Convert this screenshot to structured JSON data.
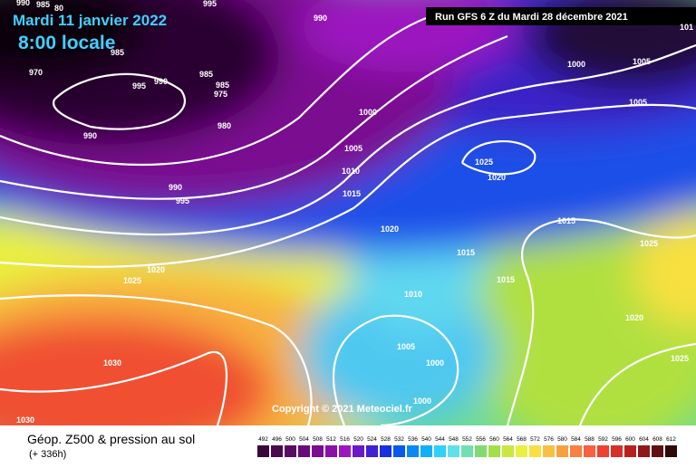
{
  "header": {
    "date": "Mardi 11 janvier 2022",
    "time": "8:00 locale",
    "run": "Run GFS 6 Z du Mardi 28 décembre 2021"
  },
  "isobar_labels": [
    990,
    985,
    80,
    995,
    990,
    985,
    970,
    995,
    990,
    985,
    985,
    975,
    980,
    990,
    1000,
    1005,
    1010,
    1015,
    990,
    995,
    1025,
    1020,
    1000,
    1005,
    1005,
    101,
    1015,
    1020,
    1025,
    1015,
    1015,
    1020,
    1025,
    1010,
    1020,
    1005,
    1000,
    1030,
    1025,
    1000,
    1030
  ],
  "copyright": "Copyright © 2021 Meteociel.fr",
  "legend": {
    "title": "Géop. Z500 & pression au sol",
    "subtitle": "(+ 336h)",
    "values": [
      492,
      496,
      500,
      504,
      508,
      512,
      516,
      520,
      524,
      528,
      532,
      536,
      540,
      544,
      548,
      552,
      556,
      560,
      564,
      568,
      572,
      576,
      580,
      584,
      588,
      592,
      596,
      600,
      604,
      608,
      612
    ],
    "colors": [
      "#3a0838",
      "#4a0a4c",
      "#5a0c64",
      "#6a0a7a",
      "#7a0c90",
      "#8a10a8",
      "#9c16c0",
      "#6a18c8",
      "#4020d0",
      "#1830e0",
      "#0a58ee",
      "#0a88f4",
      "#10b0f8",
      "#30d0f8",
      "#60e0e8",
      "#70e0b0",
      "#80dc70",
      "#a0e048",
      "#c8e840",
      "#e8f040",
      "#f8e040",
      "#f8c040",
      "#f8a040",
      "#f88040",
      "#f86040",
      "#f04030",
      "#d83028",
      "#b82020",
      "#901818",
      "#601010",
      "#300808"
    ]
  }
}
